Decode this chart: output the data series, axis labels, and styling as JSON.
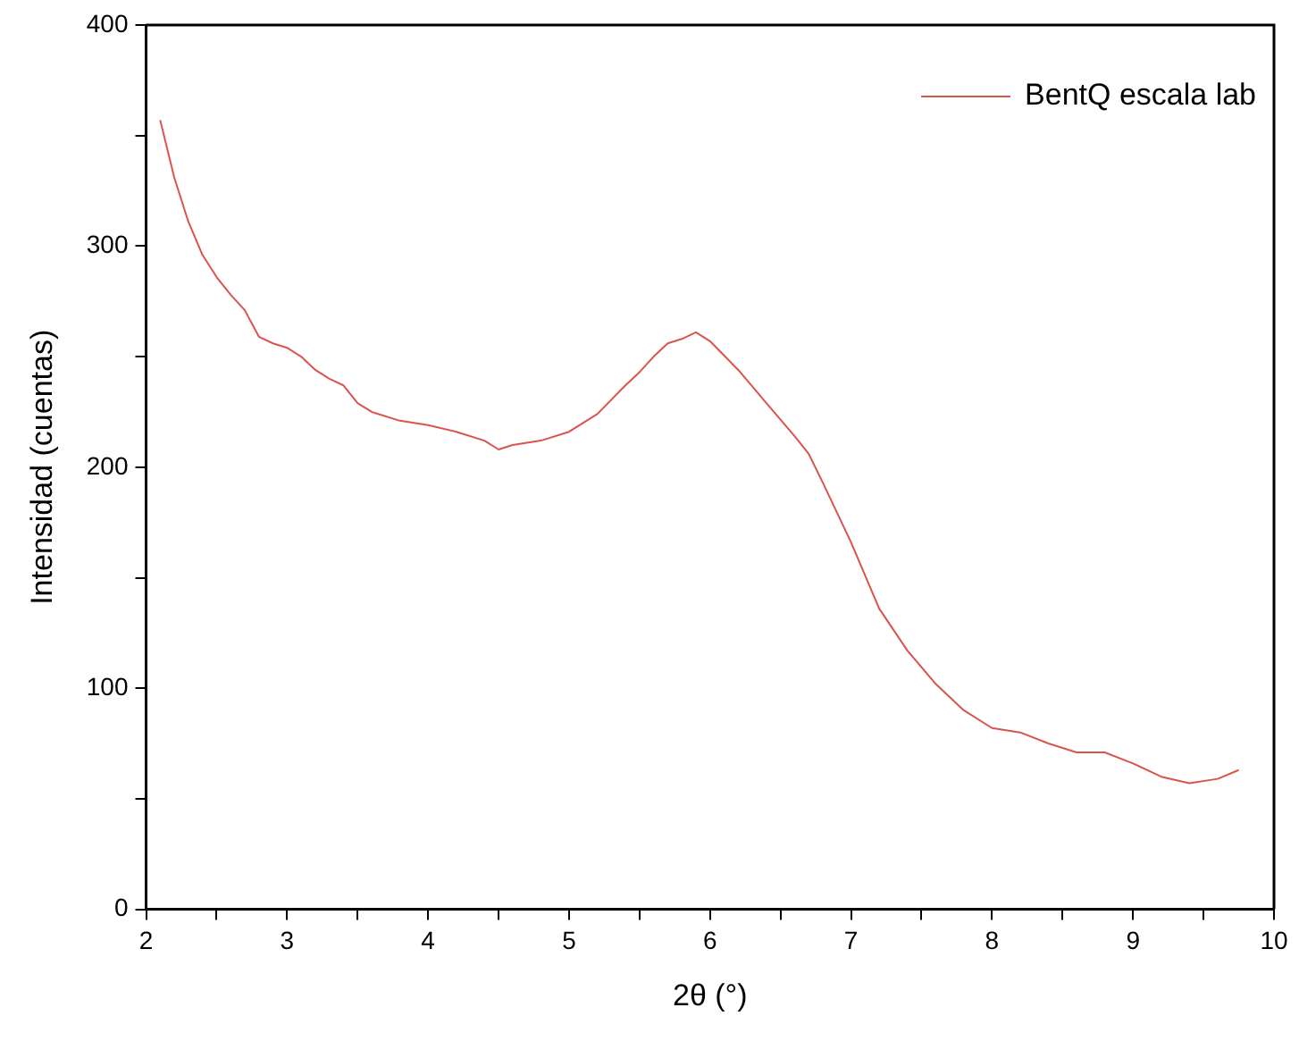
{
  "chart_data": {
    "type": "line",
    "xlabel": "2θ (°)",
    "ylabel": "Intensidad (cuentas)",
    "x": [
      2.1,
      2.2,
      2.3,
      2.4,
      2.5,
      2.6,
      2.7,
      2.8,
      2.9,
      3.0,
      3.1,
      3.2,
      3.3,
      3.4,
      3.5,
      3.6,
      3.8,
      4.0,
      4.2,
      4.4,
      4.5,
      4.6,
      4.8,
      5.0,
      5.2,
      5.4,
      5.5,
      5.6,
      5.7,
      5.8,
      5.9,
      6.0,
      6.2,
      6.4,
      6.6,
      6.7,
      6.8,
      7.0,
      7.2,
      7.4,
      7.6,
      7.8,
      8.0,
      8.2,
      8.4,
      8.6,
      8.8,
      9.0,
      9.2,
      9.4,
      9.6,
      9.75
    ],
    "series": [
      {
        "name": "BentQ escala lab",
        "color": "#d9534f",
        "values": [
          357,
          331,
          311,
          296,
          286,
          278,
          271,
          259,
          256,
          254,
          250,
          244,
          240,
          237,
          229,
          225,
          221,
          219,
          216,
          212,
          208,
          210,
          212,
          216,
          224,
          237,
          243,
          250,
          256,
          258,
          261,
          257,
          244,
          229,
          214,
          206,
          193,
          166,
          136,
          117,
          102,
          90,
          82,
          80,
          75,
          71,
          71,
          66,
          60,
          57,
          59,
          63
        ]
      }
    ],
    "xlim": [
      2,
      10
    ],
    "xticks": [
      2,
      {
        "value": 2.5,
        "label": null
      },
      3,
      {
        "value": 3.5,
        "label": null
      },
      4,
      {
        "value": 4.5,
        "label": null
      },
      5,
      {
        "value": 5.5,
        "label": null
      },
      6,
      {
        "value": 6.5,
        "label": null
      },
      7,
      {
        "value": 7.5,
        "label": null
      },
      8,
      {
        "value": 8.5,
        "label": null
      },
      9,
      {
        "value": 9.5,
        "label": null
      },
      10
    ],
    "ylim": [
      0,
      400
    ],
    "yticks": [
      0,
      {
        "value": 50,
        "label": null
      },
      100,
      {
        "value": 150,
        "label": null
      },
      200,
      {
        "value": 250,
        "label": null
      },
      300,
      {
        "value": 350,
        "label": null
      },
      400
    ],
    "grid": false,
    "legend": "top right",
    "marker": "none",
    "line_style": "solid"
  }
}
